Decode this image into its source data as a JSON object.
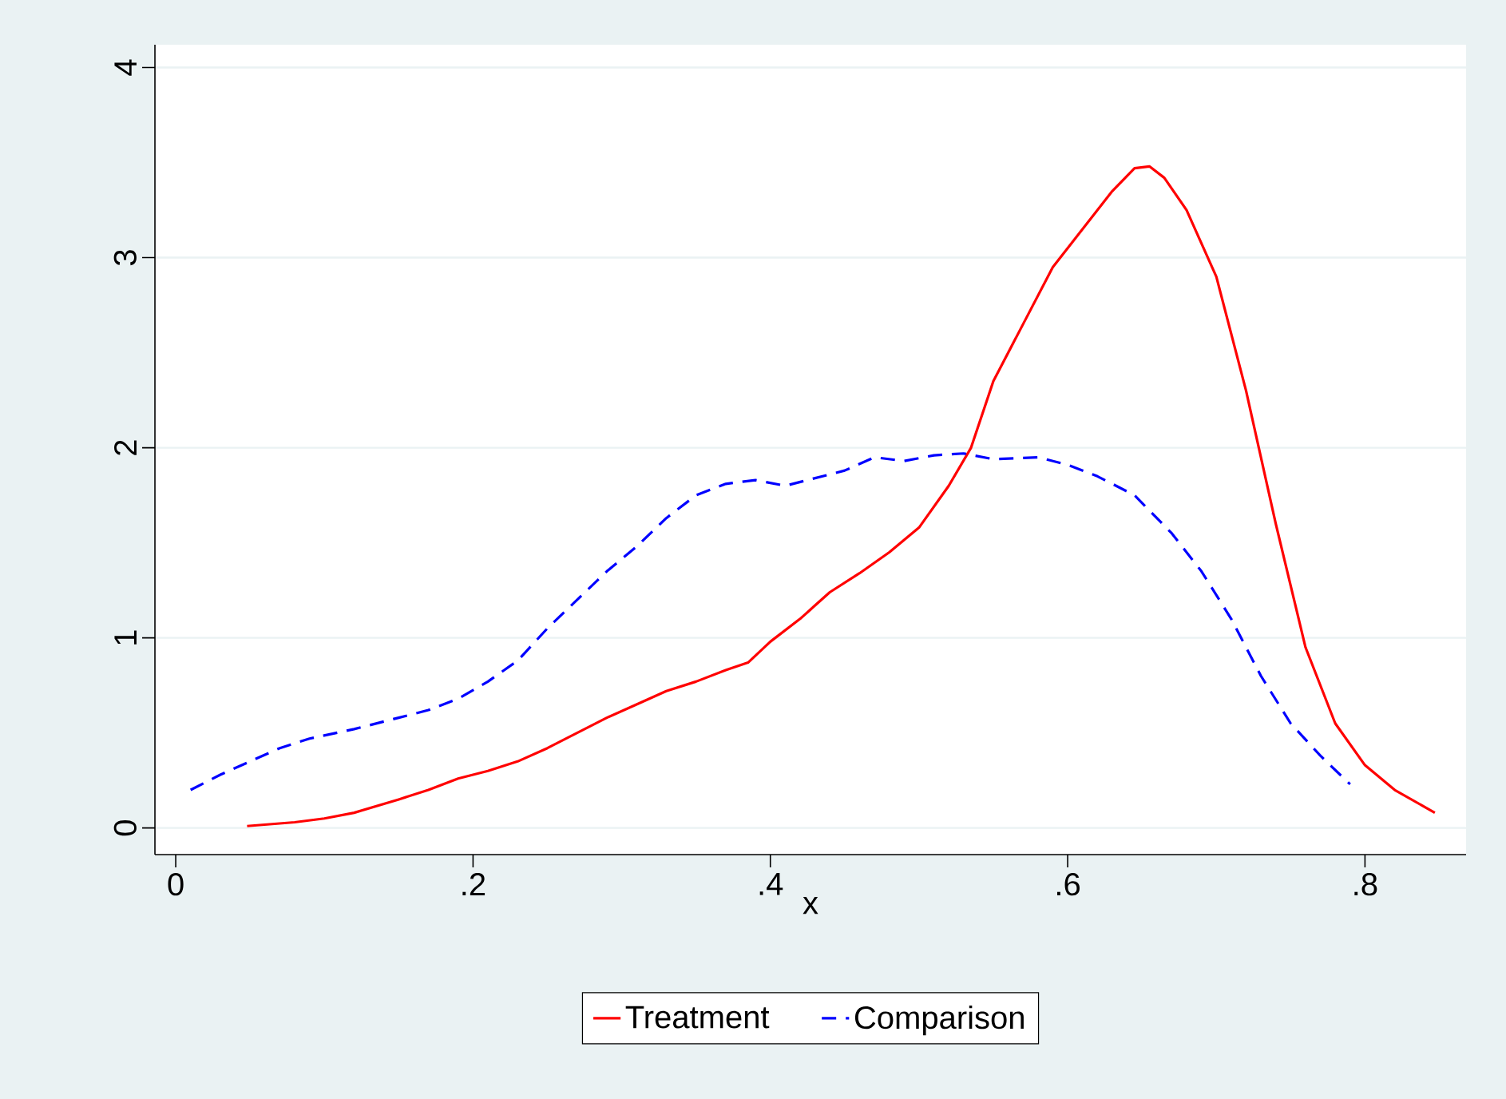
{
  "chart_data": {
    "type": "line",
    "xlabel": "x",
    "grid": "y",
    "legend": "bottom",
    "marker": "none",
    "xlim": [
      -0.014,
      0.868
    ],
    "ylim": [
      -0.14,
      4.12
    ],
    "xticks": [
      0,
      {
        "value": 0.2,
        "label": ".2"
      },
      {
        "value": 0.4,
        "label": ".4"
      },
      {
        "value": 0.6,
        "label": ".6"
      },
      {
        "value": 0.8,
        "label": ".8"
      }
    ],
    "yticks": [
      0,
      1,
      2,
      3,
      4
    ],
    "series": [
      {
        "name": "Treatment",
        "color": "#ff0000",
        "line_style": "solid",
        "x": [
          0.048,
          0.08,
          0.1,
          0.12,
          0.15,
          0.17,
          0.19,
          0.21,
          0.23,
          0.25,
          0.27,
          0.29,
          0.31,
          0.33,
          0.35,
          0.37,
          0.385,
          0.4,
          0.42,
          0.44,
          0.46,
          0.48,
          0.5,
          0.52,
          0.535,
          0.55,
          0.57,
          0.59,
          0.61,
          0.63,
          0.645,
          0.655,
          0.665,
          0.68,
          0.7,
          0.72,
          0.74,
          0.76,
          0.78,
          0.8,
          0.82,
          0.847
        ],
        "values": [
          0.01,
          0.03,
          0.05,
          0.08,
          0.15,
          0.2,
          0.26,
          0.3,
          0.35,
          0.42,
          0.5,
          0.58,
          0.65,
          0.72,
          0.77,
          0.83,
          0.87,
          0.98,
          1.1,
          1.24,
          1.34,
          1.45,
          1.58,
          1.8,
          2.0,
          2.35,
          2.65,
          2.95,
          3.15,
          3.35,
          3.47,
          3.48,
          3.42,
          3.25,
          2.9,
          2.3,
          1.6,
          0.95,
          0.55,
          0.33,
          0.2,
          0.08
        ]
      },
      {
        "name": "Comparison",
        "color": "#0000ff",
        "line_style": "dashed",
        "x": [
          0.01,
          0.03,
          0.05,
          0.07,
          0.09,
          0.12,
          0.15,
          0.17,
          0.19,
          0.21,
          0.23,
          0.25,
          0.27,
          0.29,
          0.31,
          0.33,
          0.35,
          0.37,
          0.39,
          0.41,
          0.43,
          0.45,
          0.47,
          0.49,
          0.51,
          0.53,
          0.55,
          0.58,
          0.6,
          0.62,
          0.645,
          0.67,
          0.69,
          0.71,
          0.73,
          0.75,
          0.77,
          0.79
        ],
        "values": [
          0.2,
          0.28,
          0.35,
          0.42,
          0.47,
          0.52,
          0.58,
          0.62,
          0.68,
          0.77,
          0.88,
          1.05,
          1.2,
          1.35,
          1.48,
          1.63,
          1.75,
          1.81,
          1.83,
          1.8,
          1.84,
          1.88,
          1.95,
          1.93,
          1.96,
          1.97,
          1.94,
          1.95,
          1.91,
          1.85,
          1.75,
          1.55,
          1.35,
          1.1,
          0.8,
          0.55,
          0.38,
          0.23
        ]
      }
    ]
  }
}
